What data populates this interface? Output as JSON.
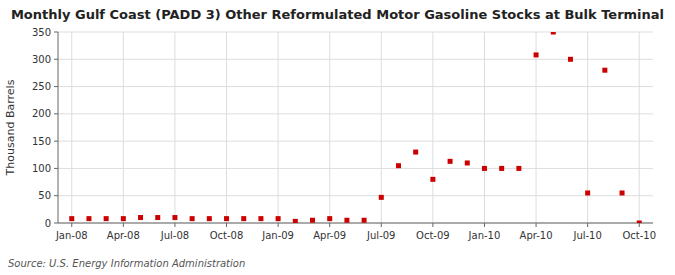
{
  "chart_data": {
    "type": "scatter",
    "title": "Monthly Gulf Coast (PADD 3) Other Reformulated Motor Gasoline Stocks at Bulk Terminal",
    "y_label": "Thousand Barrels",
    "source": "Source: U.S. Energy Information Administration",
    "color": "#cc0000",
    "marker": "square",
    "grid": true,
    "xlim": [
      -0.8,
      33.8
    ],
    "xticks": [
      {
        "value": 0,
        "label": "Jan-08"
      },
      {
        "value": 3,
        "label": "Apr-08"
      },
      {
        "value": 6,
        "label": "Jul-08"
      },
      {
        "value": 9,
        "label": "Oct-08"
      },
      {
        "value": 12,
        "label": "Jan-09"
      },
      {
        "value": 15,
        "label": "Apr-09"
      },
      {
        "value": 18,
        "label": "Jul-09"
      },
      {
        "value": 21,
        "label": "Oct-09"
      },
      {
        "value": 24,
        "label": "Jan-10"
      },
      {
        "value": 27,
        "label": "Apr-10"
      },
      {
        "value": 30,
        "label": "Jul-10"
      },
      {
        "value": 33,
        "label": "Oct-10"
      }
    ],
    "ylim": [
      0,
      350
    ],
    "yticks": [
      0,
      50,
      100,
      150,
      200,
      250,
      300,
      350
    ],
    "x": [
      0,
      1,
      2,
      3,
      4,
      5,
      6,
      7,
      8,
      9,
      10,
      11,
      12,
      13,
      14,
      15,
      16,
      17,
      18,
      19,
      20,
      21,
      22,
      23,
      24,
      25,
      26,
      27,
      28,
      29,
      30,
      31,
      32,
      33
    ],
    "values": [
      8,
      8,
      8,
      8,
      10,
      10,
      10,
      8,
      8,
      8,
      8,
      8,
      8,
      3,
      5,
      8,
      5,
      5,
      47,
      105,
      130,
      80,
      113,
      110,
      100,
      100,
      100,
      308,
      350,
      300,
      55,
      280,
      55,
      0
    ]
  }
}
